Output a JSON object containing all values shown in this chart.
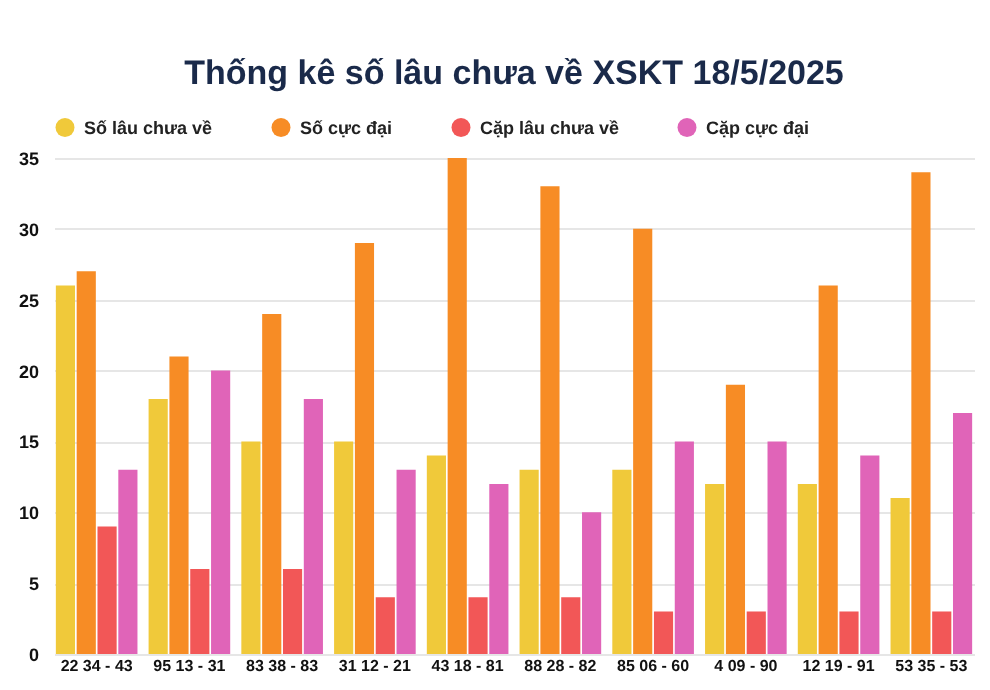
{
  "chart_data": {
    "type": "bar",
    "title": "Thống kê số lâu chưa về XSKT 18/5/2025",
    "categories": [
      "22 34 - 43",
      "95 13 - 31",
      "83 38 - 83",
      "31 12 - 21",
      "43 18 - 81",
      "88 28 - 82",
      "85 06 - 60",
      "4 09 - 90",
      "12 19 - 91",
      "53 35 - 53"
    ],
    "series": [
      {
        "name": "Số lâu chưa về",
        "color": "#f0c93a",
        "values": [
          26,
          18,
          15,
          15,
          14,
          13,
          13,
          12,
          12,
          11
        ]
      },
      {
        "name": "Số cực đại",
        "color": "#f78c25",
        "values": [
          27,
          21,
          24,
          29,
          35,
          33,
          30,
          19,
          26,
          34
        ]
      },
      {
        "name": "Cặp lâu chưa về",
        "color": "#f25757",
        "values": [
          9,
          6,
          6,
          4,
          4,
          4,
          3,
          3,
          3,
          3
        ]
      },
      {
        "name": "Cặp cực đại",
        "color": "#e064b8",
        "values": [
          13,
          20,
          18,
          13,
          12,
          10,
          15,
          15,
          14,
          17
        ]
      }
    ],
    "ylim": [
      0,
      35
    ],
    "yticks": [
      0,
      5,
      10,
      15,
      20,
      25,
      30,
      35
    ],
    "grid": "y",
    "legend": "top"
  }
}
